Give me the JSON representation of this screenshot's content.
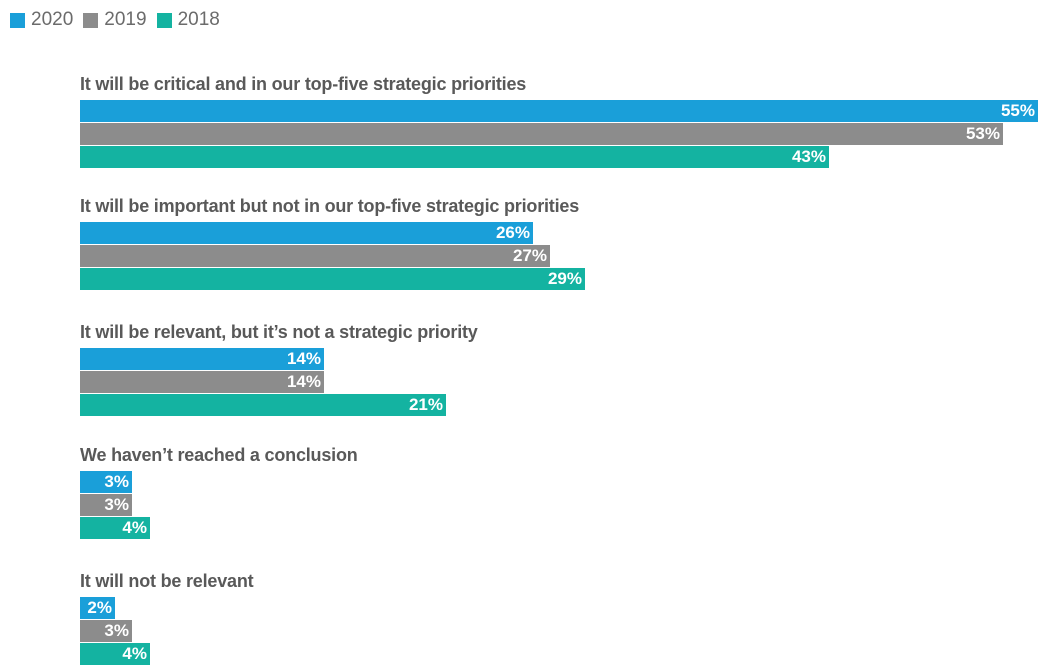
{
  "chart_data": {
    "type": "bar",
    "orientation": "horizontal",
    "categories": [
      "It will be critical and in our top-five strategic priorities",
      "It will be important but not in our top-five strategic priorities",
      "It will be relevant, but it’s not a strategic priority",
      "We haven’t reached a conclusion",
      "It will not be relevant"
    ],
    "series": [
      {
        "name": "2020",
        "color": "#1a9fd9",
        "values": [
          55,
          26,
          14,
          3,
          2
        ],
        "labels": [
          "55%",
          "26%",
          "14%",
          "3%",
          "2%"
        ]
      },
      {
        "name": "2019",
        "color": "#8c8c8c",
        "values": [
          53,
          27,
          14,
          3,
          3
        ],
        "labels": [
          "53%",
          "27%",
          "14%",
          "3%",
          "3%"
        ]
      },
      {
        "name": "2018",
        "color": "#14b3a1",
        "values": [
          43,
          29,
          21,
          4,
          4
        ],
        "labels": [
          "43%",
          "29%",
          "21%",
          "4%",
          "4%"
        ]
      }
    ],
    "xlim": [
      0,
      55
    ],
    "legend": "top-left",
    "grid": false,
    "title": "",
    "xlabel": "",
    "ylabel": ""
  }
}
